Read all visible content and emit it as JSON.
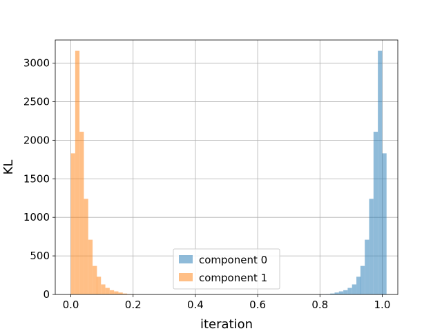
{
  "chart_data": {
    "type": "bar",
    "title": "",
    "xlabel": "iteration",
    "ylabel": "KL",
    "xlim": [
      -0.05,
      1.05
    ],
    "ylim": [
      0,
      3300
    ],
    "xticks": [
      0.0,
      0.2,
      0.4,
      0.6,
      0.8,
      1.0
    ],
    "xtick_labels": [
      "0.0",
      "0.2",
      "0.4",
      "0.6",
      "0.8",
      "1.0"
    ],
    "yticks": [
      0,
      500,
      1000,
      1500,
      2000,
      2500,
      3000
    ],
    "ytick_labels": [
      "0",
      "500",
      "1000",
      "1500",
      "2000",
      "2500",
      "3000"
    ],
    "grid": true,
    "legend": "bottom-center",
    "bin_width": 0.0139,
    "series": [
      {
        "name": "component 0",
        "color": "#1f77b4",
        "opacity": 0.5,
        "bins": [
          [
            0.805,
            3
          ],
          [
            0.819,
            5
          ],
          [
            0.833,
            12
          ],
          [
            0.847,
            25
          ],
          [
            0.861,
            40
          ],
          [
            0.875,
            55
          ],
          [
            0.889,
            85
          ],
          [
            0.903,
            130
          ],
          [
            0.917,
            230
          ],
          [
            0.93,
            370
          ],
          [
            0.944,
            710
          ],
          [
            0.958,
            1240
          ],
          [
            0.972,
            2110
          ],
          [
            0.986,
            3160
          ],
          [
            1.0,
            1830
          ]
        ]
      },
      {
        "name": "component 1",
        "color": "#ff7f0e",
        "opacity": 0.5,
        "bins": [
          [
            0.0,
            1830
          ],
          [
            0.014,
            3160
          ],
          [
            0.028,
            2110
          ],
          [
            0.042,
            1240
          ],
          [
            0.056,
            710
          ],
          [
            0.07,
            370
          ],
          [
            0.083,
            230
          ],
          [
            0.097,
            130
          ],
          [
            0.111,
            85
          ],
          [
            0.125,
            55
          ],
          [
            0.139,
            40
          ],
          [
            0.153,
            25
          ],
          [
            0.167,
            12
          ],
          [
            0.181,
            5
          ],
          [
            0.195,
            3
          ]
        ]
      }
    ]
  }
}
